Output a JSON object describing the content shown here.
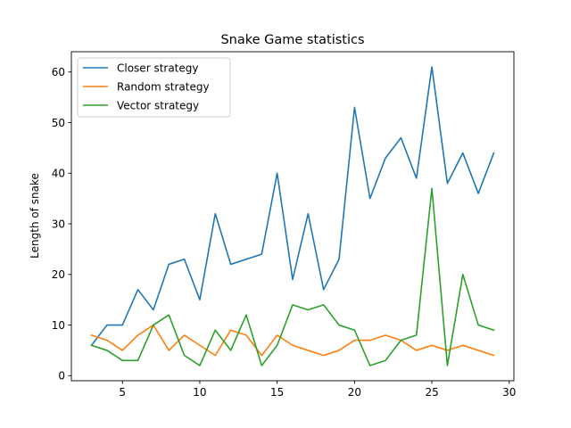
{
  "chart_data": {
    "type": "line",
    "title": "Snake Game statistics",
    "xlabel": "",
    "ylabel": "Length of snake",
    "x": [
      3,
      4,
      5,
      6,
      7,
      8,
      9,
      10,
      11,
      12,
      13,
      14,
      15,
      16,
      17,
      18,
      19,
      20,
      21,
      22,
      23,
      24,
      25,
      26,
      27,
      28,
      29
    ],
    "xlim": [
      1.7,
      30.3
    ],
    "ylim": [
      -1,
      64
    ],
    "xticks": [
      5,
      10,
      15,
      20,
      25,
      30
    ],
    "yticks": [
      0,
      10,
      20,
      30,
      40,
      50,
      60
    ],
    "grid": false,
    "legend": "top-left",
    "series": [
      {
        "name": "Closer strategy",
        "color": "#1f77b4",
        "values": [
          6,
          10,
          10,
          17,
          13,
          22,
          23,
          15,
          32,
          22,
          23,
          24,
          40,
          19,
          32,
          17,
          23,
          53,
          35,
          43,
          47,
          39,
          61,
          38,
          44,
          36,
          44
        ]
      },
      {
        "name": "Random strategy",
        "color": "#ff7f0e",
        "values": [
          8,
          7,
          5,
          8,
          10,
          5,
          8,
          6,
          4,
          9,
          8,
          4,
          8,
          6,
          5,
          4,
          5,
          7,
          7,
          8,
          7,
          5,
          6,
          5,
          6,
          5,
          4
        ]
      },
      {
        "name": "Vector strategy",
        "color": "#2ca02c",
        "values": [
          6,
          5,
          3,
          3,
          10,
          12,
          4,
          2,
          9,
          5,
          12,
          2,
          6,
          14,
          13,
          14,
          10,
          9,
          2,
          3,
          7,
          8,
          37,
          2,
          20,
          10,
          9
        ]
      }
    ]
  }
}
